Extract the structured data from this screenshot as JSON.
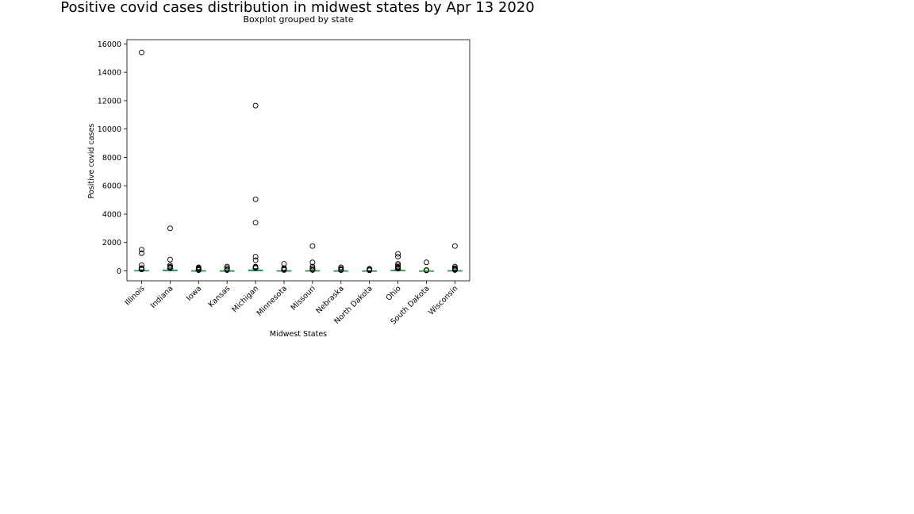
{
  "chart_data": {
    "type": "box",
    "title": "Positive covid cases distribution in midwest states by Apr 13 2020",
    "subtitle": "Boxplot grouped by state",
    "xlabel": "Midwest States",
    "ylabel": "Positive covid cases",
    "ylim": [
      -700,
      16300
    ],
    "yticks": [
      0,
      2000,
      4000,
      6000,
      8000,
      10000,
      12000,
      14000,
      16000
    ],
    "ytick_labels": [
      "0",
      "2000",
      "4000",
      "6000",
      "8000",
      "10000",
      "12000",
      "14000",
      "16000"
    ],
    "grid": false,
    "categories": [
      "Illinois",
      "Indiana",
      "Iowa",
      "Kansas",
      "Michigan",
      "Minnesota",
      "Missouri",
      "Nebraska",
      "North Dakota",
      "Ohio",
      "South Dakota",
      "Wisconsin"
    ],
    "boxes": [
      {
        "q1": 3,
        "median": 10,
        "q3": 30,
        "whisker_low": 0,
        "whisker_high": 80,
        "outliers": [
          15400,
          1500,
          1250,
          400,
          200,
          150,
          100
        ]
      },
      {
        "q1": 10,
        "median": 25,
        "q3": 70,
        "whisker_low": 0,
        "whisker_high": 150,
        "outliers": [
          3000,
          800,
          400,
          300,
          250,
          200
        ]
      },
      {
        "q1": 2,
        "median": 5,
        "q3": 15,
        "whisker_low": 0,
        "whisker_high": 35,
        "outliers": [
          250,
          200,
          150,
          100,
          60,
          50
        ]
      },
      {
        "q1": 1,
        "median": 4,
        "q3": 10,
        "whisker_low": 0,
        "whisker_high": 25,
        "outliers": [
          300,
          200,
          100,
          50
        ]
      },
      {
        "q1": 5,
        "median": 20,
        "q3": 70,
        "whisker_low": 0,
        "whisker_high": 160,
        "outliers": [
          11650,
          5050,
          3400,
          1000,
          750,
          300,
          250,
          200
        ]
      },
      {
        "q1": 2,
        "median": 5,
        "q3": 15,
        "whisker_low": 0,
        "whisker_high": 35,
        "outliers": [
          500,
          200,
          150,
          100,
          60
        ]
      },
      {
        "q1": 2,
        "median": 6,
        "q3": 20,
        "whisker_low": 0,
        "whisker_high": 45,
        "outliers": [
          1750,
          600,
          300,
          200,
          100,
          60
        ]
      },
      {
        "q1": 1,
        "median": 3,
        "q3": 10,
        "whisker_low": 0,
        "whisker_high": 25,
        "outliers": [
          250,
          150,
          100,
          50
        ]
      },
      {
        "q1": 1,
        "median": 2,
        "q3": 8,
        "whisker_low": 0,
        "whisker_high": 20,
        "outliers": [
          150,
          100,
          60,
          40
        ]
      },
      {
        "q1": 5,
        "median": 15,
        "q3": 50,
        "whisker_low": 0,
        "whisker_high": 120,
        "outliers": [
          1200,
          1000,
          500,
          400,
          300,
          250,
          200,
          150
        ]
      },
      {
        "q1": 1,
        "median": 2,
        "q3": 6,
        "whisker_low": 0,
        "whisker_high": 15,
        "outliers": [
          600,
          60,
          40,
          30
        ]
      },
      {
        "q1": 2,
        "median": 6,
        "q3": 20,
        "whisker_low": 0,
        "whisker_high": 45,
        "outliers": [
          1750,
          300,
          200,
          150,
          100,
          60
        ]
      }
    ],
    "colors": {
      "box": "#1f77b4",
      "median": "#2ca02c",
      "whisker": "#1f77b4",
      "outlier_edge": "#000000",
      "axis": "#000000"
    }
  }
}
